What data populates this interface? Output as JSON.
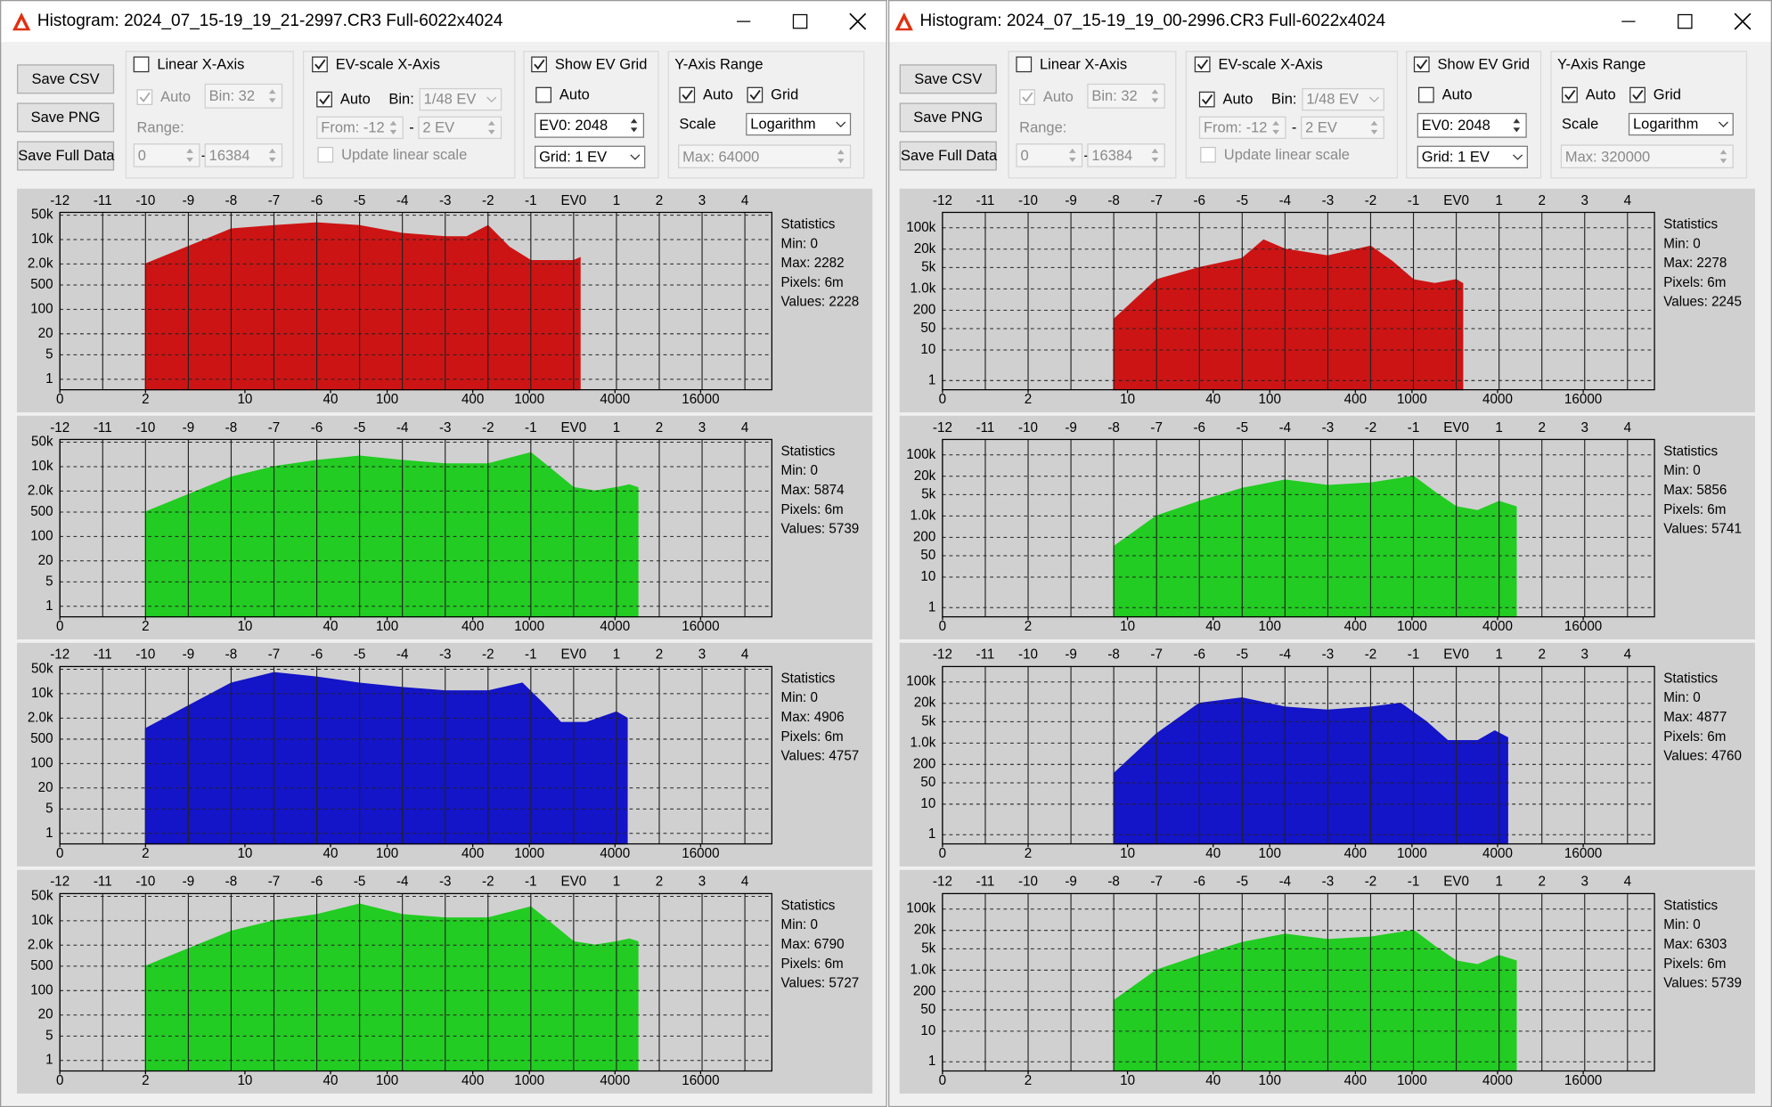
{
  "windows": [
    {
      "title": "Histogram: 2024_07_15-19_19_21-2997.CR3 Full-6022x4024",
      "controls": {
        "save_csv": "Save CSV",
        "save_png": "Save PNG",
        "save_full": "Save Full Data",
        "linear_x": {
          "label": "Linear X-Axis",
          "checked": false
        },
        "lin_auto": {
          "label": "Auto",
          "checked": true
        },
        "lin_bin": "Bin: 32",
        "range_label": "Range:",
        "range_from": "0",
        "range_sep": "-",
        "range_to": "16384",
        "ev_x": {
          "label": "EV-scale X-Axis",
          "checked": true
        },
        "ev_auto": {
          "label": "Auto",
          "checked": true
        },
        "ev_bin_label": "Bin:",
        "ev_bin": "1/48 EV",
        "ev_from": "From: -12",
        "ev_sep": "-",
        "ev_to": "2 EV",
        "update_linear": {
          "label": "Update linear scale",
          "checked": false
        },
        "show_grid": {
          "label": "Show EV Grid",
          "checked": true
        },
        "grid_auto": {
          "label": "Auto",
          "checked": false
        },
        "ev0": {
          "label": "EV0:",
          "value": 2048
        },
        "grid_step": "Grid: 1 EV",
        "y_range": "Y-Axis Range",
        "y_auto": {
          "label": "Auto",
          "checked": true
        },
        "y_grid": {
          "label": "Grid",
          "checked": true
        },
        "scale_label": "Scale",
        "scale": "Logarithm",
        "y_max": "Max: 64000"
      },
      "axes": {
        "xlim": [
          -12,
          4.63
        ],
        "ev_ticks": [
          -12,
          -11,
          -10,
          -9,
          -8,
          -7,
          -6,
          -5,
          -4,
          -3,
          -2,
          -1,
          {
            "value": 0,
            "label": "EV0"
          },
          1,
          2,
          3,
          4
        ],
        "bottom_ticks": [
          0,
          2,
          10,
          40,
          100,
          400,
          1000,
          4000,
          16000
        ],
        "log_y": true,
        "ylim": [
          0.5,
          60000
        ],
        "yticks": [
          {
            "value": 50000,
            "label": "50k"
          },
          {
            "value": 10000,
            "label": "10k"
          },
          {
            "value": 2000,
            "label": "2.0k"
          },
          500,
          100,
          20,
          5,
          1
        ]
      },
      "panels": [
        {
          "type": "area",
          "color": "#cc1414",
          "x": [
            -10,
            -8,
            -7,
            -6,
            -5,
            -4,
            -3,
            -2.5,
            -2,
            -1.5,
            -1,
            0,
            0.15
          ],
          "values": [
            2000,
            20000,
            25000,
            30000,
            25000,
            15000,
            12000,
            12000,
            25000,
            6000,
            2500,
            2500,
            3000
          ],
          "stats": [
            "Statistics",
            "Min: 0",
            "Max: 2282",
            "Pixels: 6m",
            "Values: 2228"
          ]
        },
        {
          "type": "area",
          "color": "#22cc22",
          "x": [
            -10,
            -8,
            -7,
            -6,
            -5,
            -4,
            -3,
            -2,
            -1,
            -0.5,
            0,
            0.5,
            1,
            1.3,
            1.5
          ],
          "values": [
            500,
            5000,
            10000,
            15000,
            20000,
            15000,
            12000,
            12000,
            25000,
            8000,
            2500,
            2000,
            2500,
            3000,
            2500
          ],
          "stats": [
            "Statistics",
            "Min: 0",
            "Max: 5874",
            "Pixels: 6m",
            "Values: 5739"
          ]
        },
        {
          "type": "area",
          "color": "#1414c8",
          "x": [
            -10,
            -8,
            -7,
            -6,
            -5,
            -4,
            -3,
            -2,
            -1.2,
            -0.7,
            -0.3,
            0.3,
            1,
            1.25
          ],
          "values": [
            1000,
            20000,
            40000,
            30000,
            20000,
            15000,
            12000,
            12000,
            20000,
            5000,
            1500,
            1500,
            3000,
            2000
          ],
          "stats": [
            "Statistics",
            "Min: 0",
            "Max: 4906",
            "Pixels: 6m",
            "Values: 4757"
          ]
        },
        {
          "type": "area",
          "color": "#22cc22",
          "x": [
            -10,
            -8,
            -7,
            -6,
            -5,
            -4,
            -3,
            -2,
            -1,
            -0.5,
            0,
            0.5,
            1,
            1.3,
            1.5
          ],
          "values": [
            500,
            5000,
            10000,
            15000,
            30000,
            15000,
            12000,
            12000,
            25000,
            8000,
            2500,
            2000,
            2500,
            3000,
            2500
          ],
          "stats": [
            "Statistics",
            "Min: 0",
            "Max: 6790",
            "Pixels: 6m",
            "Values: 5727"
          ]
        }
      ]
    },
    {
      "title": "Histogram: 2024_07_15-19_19_00-2996.CR3 Full-6022x4024",
      "controls": {
        "save_csv": "Save CSV",
        "save_png": "Save PNG",
        "save_full": "Save Full Data",
        "linear_x": {
          "label": "Linear X-Axis",
          "checked": false
        },
        "lin_auto": {
          "label": "Auto",
          "checked": true
        },
        "lin_bin": "Bin: 32",
        "range_label": "Range:",
        "range_from": "0",
        "range_sep": "-",
        "range_to": "16384",
        "ev_x": {
          "label": "EV-scale X-Axis",
          "checked": true
        },
        "ev_auto": {
          "label": "Auto",
          "checked": true
        },
        "ev_bin_label": "Bin:",
        "ev_bin": "1/48 EV",
        "ev_from": "From: -12",
        "ev_sep": "-",
        "ev_to": "2 EV",
        "update_linear": {
          "label": "Update linear scale",
          "checked": false
        },
        "show_grid": {
          "label": "Show EV Grid",
          "checked": true
        },
        "grid_auto": {
          "label": "Auto",
          "checked": false
        },
        "ev0": {
          "label": "EV0:",
          "value": 2048
        },
        "grid_step": "Grid: 1 EV",
        "y_range": "Y-Axis Range",
        "y_auto": {
          "label": "Auto",
          "checked": true
        },
        "y_grid": {
          "label": "Grid",
          "checked": true
        },
        "scale_label": "Scale",
        "scale": "Logarithm",
        "y_max": "Max: 320000"
      },
      "axes": {
        "xlim": [
          -12,
          4.63
        ],
        "ev_ticks": [
          -12,
          -11,
          -10,
          -9,
          -8,
          -7,
          -6,
          -5,
          -4,
          -3,
          -2,
          -1,
          {
            "value": 0,
            "label": "EV0"
          },
          1,
          2,
          3,
          4
        ],
        "bottom_ticks": [
          0,
          2,
          10,
          40,
          100,
          400,
          1000,
          4000,
          16000
        ],
        "log_y": true,
        "ylim": [
          0.5,
          320000
        ],
        "yticks": [
          {
            "value": 100000,
            "label": "100k"
          },
          {
            "value": 20000,
            "label": "20k"
          },
          {
            "value": 5000,
            "label": "5k"
          },
          {
            "value": 1000,
            "label": "1.0k"
          },
          200,
          50,
          10,
          1
        ]
      },
      "panels": [
        {
          "type": "area",
          "color": "#cc1414",
          "x": [
            -8,
            -7,
            -6,
            -5,
            -4.5,
            -4,
            -3,
            -2,
            -1.5,
            -1,
            -0.5,
            0,
            0.15
          ],
          "values": [
            100,
            2000,
            5000,
            10000,
            40000,
            20000,
            12000,
            25000,
            8000,
            2000,
            1500,
            2000,
            1500
          ],
          "stats": [
            "Statistics",
            "Min: 0",
            "Max: 2278",
            "Pixels: 6m",
            "Values: 2245"
          ]
        },
        {
          "type": "area",
          "color": "#22cc22",
          "x": [
            -8,
            -7,
            -6,
            -5,
            -4,
            -3,
            -2,
            -1,
            -0.5,
            0,
            0.5,
            1,
            1.4
          ],
          "values": [
            100,
            1000,
            3000,
            8000,
            15000,
            10000,
            12000,
            20000,
            6000,
            2000,
            1500,
            3000,
            2000
          ],
          "stats": [
            "Statistics",
            "Min: 0",
            "Max: 5856",
            "Pixels: 6m",
            "Values: 5741"
          ]
        },
        {
          "type": "area",
          "color": "#1414c8",
          "x": [
            -8,
            -7,
            -6,
            -5,
            -4,
            -3,
            -2,
            -1.3,
            -0.7,
            -0.2,
            0.5,
            0.9,
            1.2
          ],
          "values": [
            100,
            2000,
            20000,
            30000,
            15000,
            12000,
            15000,
            20000,
            5000,
            1200,
            1200,
            2500,
            1500
          ],
          "stats": [
            "Statistics",
            "Min: 0",
            "Max: 4877",
            "Pixels: 6m",
            "Values: 4760"
          ]
        },
        {
          "type": "area",
          "color": "#22cc22",
          "x": [
            -8,
            -7,
            -6,
            -5,
            -4,
            -3,
            -2,
            -1,
            -0.5,
            0,
            0.5,
            1,
            1.4
          ],
          "values": [
            100,
            1000,
            3000,
            8000,
            15000,
            10000,
            12000,
            20000,
            6000,
            2000,
            1500,
            3000,
            2000
          ],
          "stats": [
            "Statistics",
            "Min: 0",
            "Max: 6303",
            "Pixels: 6m",
            "Values: 5739"
          ]
        }
      ]
    }
  ]
}
